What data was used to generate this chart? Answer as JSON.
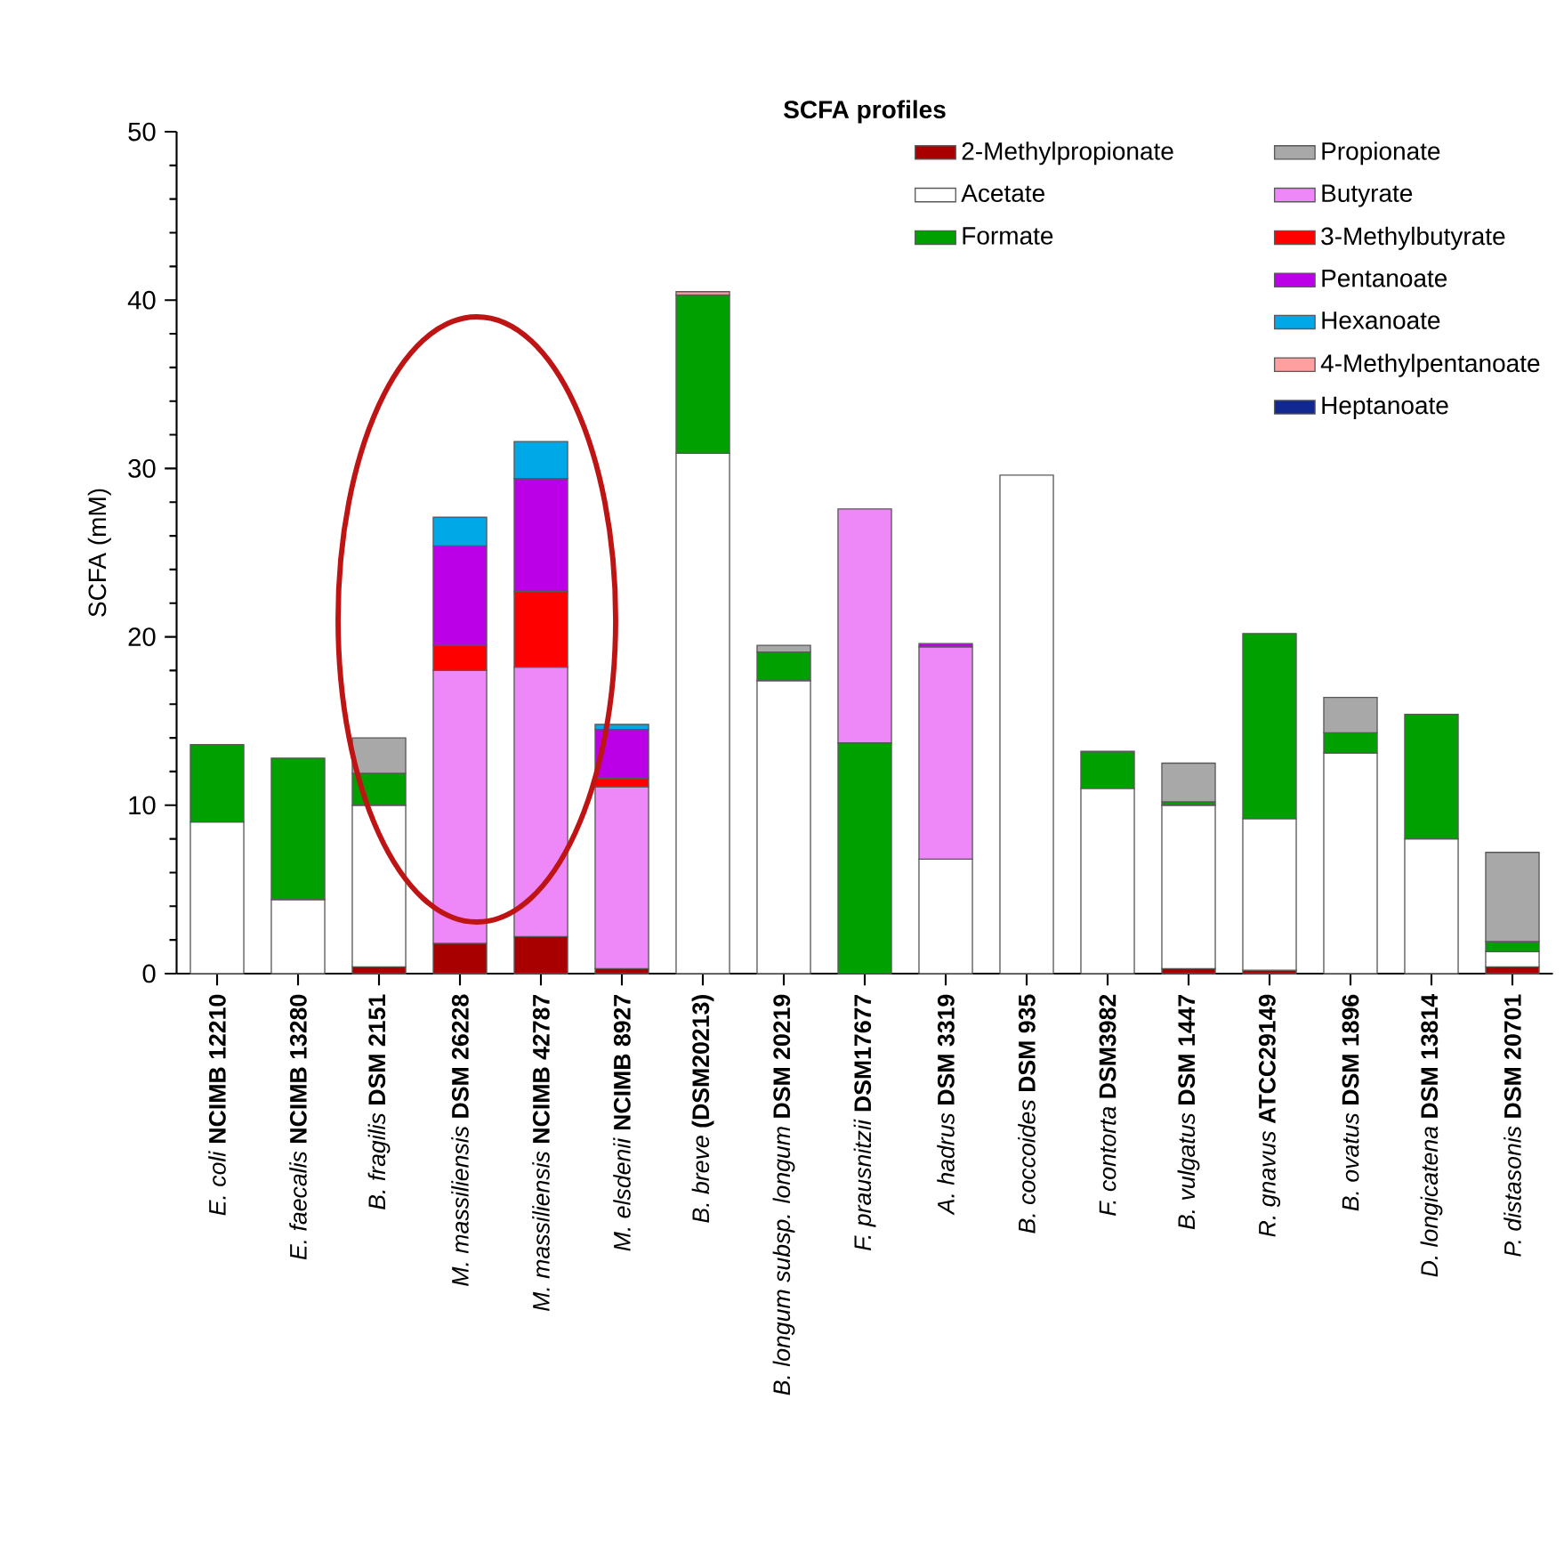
{
  "chart_data": {
    "type": "bar",
    "stacked": true,
    "title": "SCFA profiles",
    "ylabel": "SCFA (mM)",
    "categories": [
      "*E. coli* **NCIMB 12210**",
      "*E. faecalis* **NCIMB 13280**",
      "*B. fragilis* **DSM 2151**",
      "*M. massiliensis* **DSM 26228**",
      "*M. massiliensis* **NCIMB 42787**",
      "*M. elsdenii* **NCIMB 8927**",
      "*B. breve* **(DSM20213)**",
      "*B. longum subsp. longum* **DSM 20219**",
      "*F. prausnitzii* **DSM17677**",
      "*A. hadrus* **DSM 3319**",
      "*B. coccoides* **DSM 935**",
      "*F. contorta* **DSM3982**",
      "*B. vulgatus* **DSM 1447**",
      "*R. gnavus* **ATCC29149**",
      "*B. ovatus* **DSM 1896**",
      "*D. longicatena* **DSM 13814**",
      "*P. distasonis* **DSM 20701**"
    ],
    "ylim": [
      0,
      50
    ],
    "yticks": [
      0,
      10,
      20,
      30,
      40,
      50
    ],
    "legend": "top right",
    "series": [
      {
        "name": "2-Methylpropionate",
        "color": "#a80000",
        "values": [
          null,
          null,
          0.4,
          1.8,
          2.2,
          0.3,
          null,
          null,
          null,
          null,
          null,
          null,
          0.3,
          0.2,
          null,
          null,
          0.4
        ]
      },
      {
        "name": "Acetate",
        "color": "#ffffff",
        "values": [
          9.0,
          4.4,
          9.6,
          null,
          null,
          null,
          30.9,
          17.4,
          null,
          6.8,
          29.6,
          11.0,
          9.7,
          9.0,
          13.1,
          8.0,
          0.9
        ]
      },
      {
        "name": "Formate",
        "color": "#00a000",
        "values": [
          4.6,
          8.4,
          1.9,
          null,
          null,
          null,
          9.4,
          1.7,
          13.7,
          null,
          null,
          2.2,
          0.2,
          11.0,
          1.2,
          7.4,
          0.6
        ]
      },
      {
        "name": "Propionate",
        "color": "#a8a8a8",
        "values": [
          null,
          null,
          2.1,
          null,
          null,
          null,
          null,
          0.4,
          null,
          null,
          null,
          null,
          2.3,
          null,
          2.1,
          null,
          5.3
        ]
      },
      {
        "name": "Butyrate",
        "color": "#ee88f8",
        "values": [
          null,
          null,
          null,
          16.2,
          16.0,
          10.8,
          null,
          null,
          13.9,
          12.6,
          null,
          null,
          null,
          null,
          null,
          null,
          null
        ]
      },
      {
        "name": "3-Methylbutyrate",
        "color": "#ff0000",
        "values": [
          null,
          null,
          null,
          1.5,
          4.5,
          0.5,
          null,
          null,
          null,
          null,
          null,
          null,
          null,
          null,
          null,
          null,
          null
        ]
      },
      {
        "name": "Pentanoate",
        "color": "#bb00e8",
        "values": [
          null,
          null,
          null,
          5.9,
          6.7,
          2.9,
          null,
          null,
          null,
          0.2,
          null,
          null,
          null,
          null,
          null,
          null,
          null
        ]
      },
      {
        "name": "Hexanoate",
        "color": "#00a8e8",
        "values": [
          null,
          null,
          null,
          1.7,
          2.2,
          0.3,
          null,
          null,
          null,
          null,
          null,
          null,
          null,
          null,
          null,
          null,
          null
        ]
      },
      {
        "name": "4-Methylpentanoate",
        "color": "#ff9f9f",
        "values": [
          null,
          null,
          null,
          null,
          null,
          null,
          0.2,
          null,
          null,
          null,
          null,
          null,
          null,
          null,
          null,
          null,
          null
        ]
      },
      {
        "name": "Heptanoate",
        "color": "#102890",
        "values": [
          null,
          null,
          null,
          null,
          null,
          null,
          null,
          null,
          null,
          null,
          null,
          null,
          null,
          null,
          null,
          null,
          null
        ]
      }
    ]
  }
}
